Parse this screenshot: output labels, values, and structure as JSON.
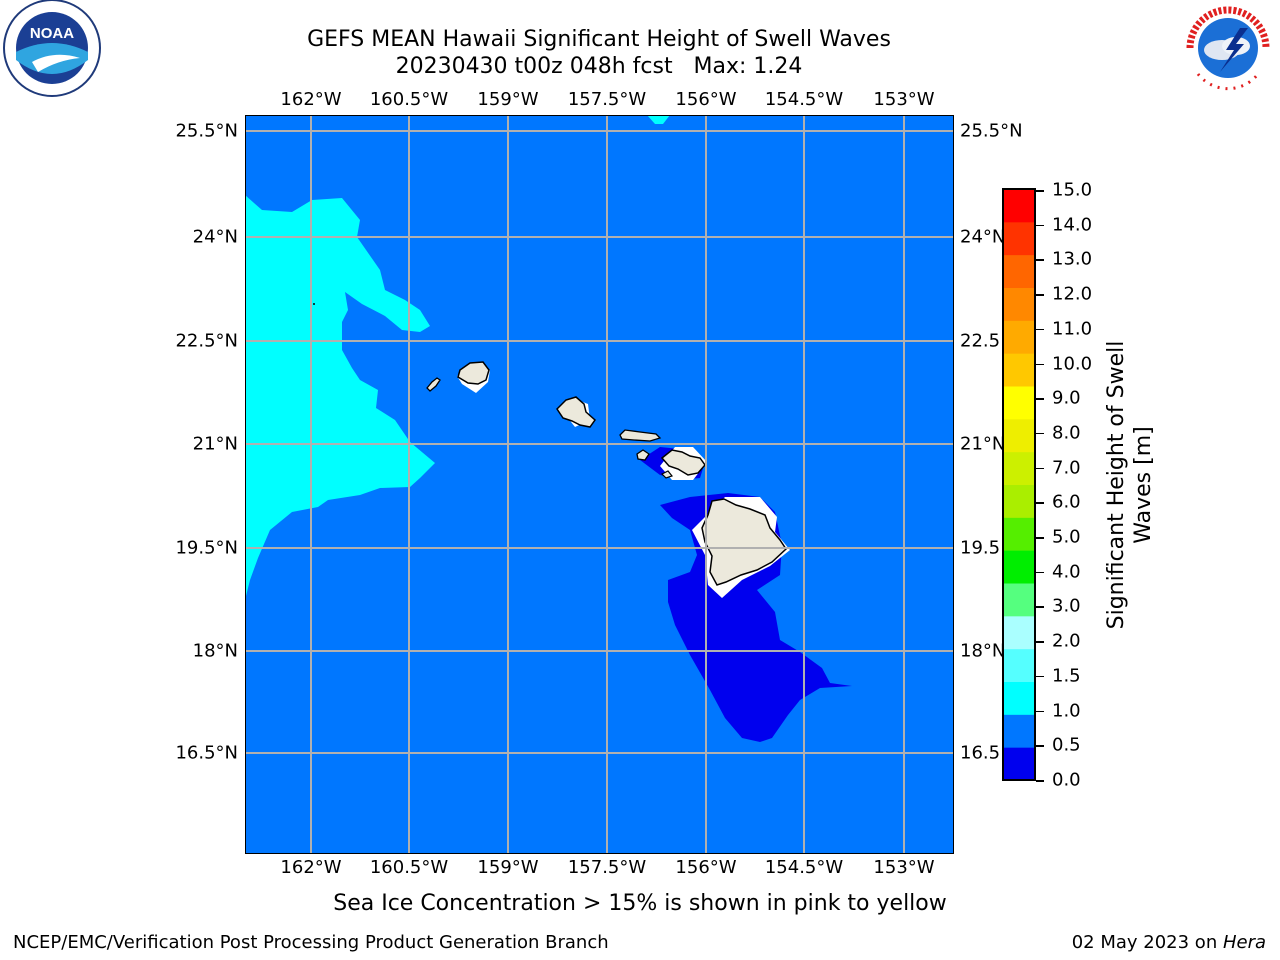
{
  "header": {
    "title_line1": "GEFS MEAN Hawaii Significant Height of Swell Waves",
    "title_line2": "20230430 t00z 048h fcst   Max: 1.24"
  },
  "logos": {
    "left": {
      "name": "noaa-logo",
      "text": "NOAA"
    },
    "right": {
      "name": "nws-logo",
      "text": "NATIONAL WEATHER SERVICE"
    }
  },
  "map": {
    "lon_labels": [
      "162°W",
      "160.5°W",
      "159°W",
      "157.5°W",
      "156°W",
      "154.5°W",
      "153°W"
    ],
    "lat_labels": [
      "25.5°N",
      "24°N",
      "22.5°N",
      "21°N",
      "19.5°N",
      "18°N",
      "16.5°N"
    ],
    "lat_labels_right": [
      "25.5°N",
      "24°N",
      "22.5",
      "21°N",
      "19.5",
      "18°N",
      "16.5"
    ],
    "colors": {
      "ocean_0_1": "#0077ff",
      "ocean_0_05": "#0000ee",
      "ocean_1_15": "#00ffff",
      "land": "#ece9dc",
      "grid": "#b0b0b0"
    }
  },
  "colorbar": {
    "label": "Significant Height of Swell Waves [m]",
    "ticks": [
      "15.0",
      "14.0",
      "13.0",
      "12.0",
      "11.0",
      "10.0",
      "9.0",
      "8.0",
      "7.0",
      "6.0",
      "5.0",
      "4.0",
      "3.0",
      "2.0",
      "1.5",
      "1.0",
      "0.5",
      "0.0"
    ],
    "colors": [
      "#0000ee",
      "#0077ff",
      "#00ffff",
      "#55ffff",
      "#aaffff",
      "#55ff7f",
      "#00ee00",
      "#55ee00",
      "#aaee00",
      "#ccf000",
      "#eeee00",
      "#ffff00",
      "#ffc800",
      "#ffaa00",
      "#ff8800",
      "#ff6600",
      "#ff3300",
      "#ff0000"
    ]
  },
  "footer": {
    "note": "Sea Ice Concentration > 15% is shown in pink to yellow",
    "left": "NCEP/EMC/Verification Post Processing Product Generation Branch",
    "date": "02 May 2023 on ",
    "machine": "Hera"
  }
}
